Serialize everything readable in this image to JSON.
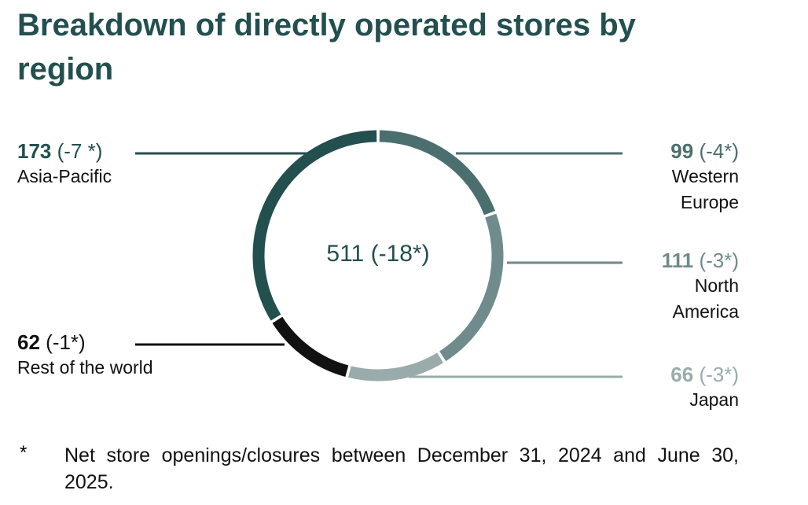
{
  "chart_data": {
    "type": "donut",
    "title": "Breakdown of directly operated stores by region",
    "categories": [
      "Western Europe",
      "North America",
      "Japan",
      "Rest of the world",
      "Asia-Pacific"
    ],
    "values": [
      99,
      111,
      66,
      62,
      173
    ],
    "change_labels": [
      "(-4*)",
      "(-3*)",
      "(-3*)",
      "(-1*)",
      "(-7 *)"
    ],
    "colors": [
      "#4b6f6f",
      "#6f8b8b",
      "#9aabab",
      "#111111",
      "#234f4f"
    ],
    "total": 511,
    "total_change_label": "(-18*)",
    "footnote_marker": "*",
    "footnote": "Net store openings/closures between December 31, 2024 and June 30, 2025."
  }
}
